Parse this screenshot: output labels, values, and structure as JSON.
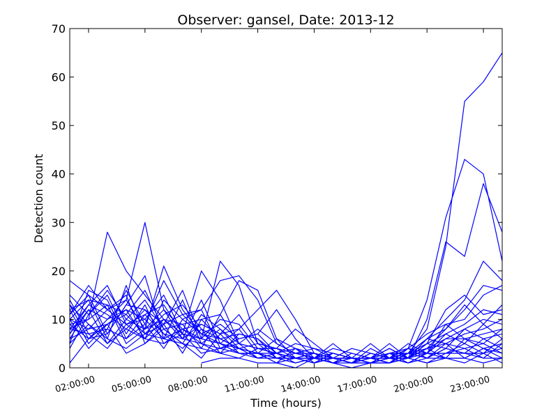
{
  "chart_data": {
    "type": "line",
    "title": "Observer: gansel, Date: 2013-12",
    "xlabel": "Time (hours)",
    "ylabel": "Detection count",
    "ylim": [
      0,
      70
    ],
    "xlim": [
      1,
      24
    ],
    "yticks": [
      "0",
      "10",
      "20",
      "30",
      "40",
      "50",
      "60",
      "70"
    ],
    "xticks": [
      {
        "x": 2,
        "label": "02:00:00"
      },
      {
        "x": 5,
        "label": "05:00:00"
      },
      {
        "x": 8,
        "label": "08:00:00"
      },
      {
        "x": 11,
        "label": "11:00:00"
      },
      {
        "x": 14,
        "label": "14:00:00"
      },
      {
        "x": 17,
        "label": "17:00:00"
      },
      {
        "x": 20,
        "label": "20:00:00"
      },
      {
        "x": 23,
        "label": "23:00:00"
      }
    ],
    "grid": false,
    "legend": false,
    "line_color": "#0000ff",
    "x": [
      1,
      2,
      3,
      4,
      5,
      6,
      7,
      8,
      9,
      10,
      11,
      12,
      13,
      14,
      15,
      16,
      17,
      18,
      19,
      20,
      21,
      22,
      23,
      24
    ],
    "series": [
      {
        "values": [
          18,
          15,
          12,
          14,
          8,
          10,
          6,
          5,
          3,
          4,
          2,
          3,
          2,
          1,
          2,
          1,
          2,
          1,
          3,
          8,
          25,
          55,
          59,
          65
        ]
      },
      {
        "values": [
          12,
          14,
          13,
          11,
          7,
          6,
          8,
          5,
          4,
          3,
          3,
          2,
          1,
          2,
          1,
          1,
          1,
          2,
          2,
          10,
          26,
          23,
          38,
          28
        ]
      },
      {
        "values": [
          10,
          8,
          9,
          12,
          10,
          6,
          5,
          4,
          3,
          2,
          4,
          3,
          2,
          2,
          3,
          2,
          2,
          3,
          4,
          14,
          31,
          43,
          40,
          22
        ]
      },
      {
        "values": [
          8,
          10,
          28,
          20,
          15,
          10,
          7,
          6,
          5,
          4,
          3,
          2,
          2,
          1,
          2,
          1,
          3,
          2,
          3,
          6,
          10,
          14,
          22,
          18
        ]
      },
      {
        "values": [
          6,
          12,
          10,
          14,
          30,
          12,
          8,
          6,
          5,
          3,
          3,
          3,
          2,
          2,
          1,
          2,
          2,
          1,
          3,
          5,
          12,
          15,
          11,
          12
        ]
      },
      {
        "values": [
          15,
          11,
          16,
          10,
          8,
          21,
          12,
          7,
          6,
          4,
          3,
          2,
          2,
          3,
          2,
          1,
          3,
          2,
          2,
          4,
          8,
          12,
          17,
          16
        ]
      },
      {
        "values": [
          11,
          17,
          12,
          9,
          11,
          13,
          7,
          20,
          14,
          5,
          4,
          3,
          2,
          2,
          1,
          2,
          1,
          1,
          4,
          7,
          9,
          10,
          15,
          17
        ]
      },
      {
        "values": [
          9,
          6,
          7,
          13,
          12,
          9,
          16,
          6,
          22,
          17,
          5,
          4,
          3,
          2,
          2,
          1,
          2,
          3,
          3,
          6,
          8,
          13,
          9,
          13
        ]
      },
      {
        "values": [
          7,
          13,
          11,
          8,
          6,
          14,
          10,
          12,
          18,
          19,
          14,
          5,
          3,
          2,
          2,
          2,
          1,
          2,
          2,
          5,
          7,
          9,
          12,
          11
        ]
      },
      {
        "values": [
          13,
          9,
          5,
          10,
          14,
          8,
          9,
          10,
          11,
          18,
          16,
          6,
          4,
          3,
          2,
          2,
          2,
          2,
          3,
          4,
          6,
          8,
          10,
          9
        ]
      },
      {
        "values": [
          5,
          16,
          14,
          6,
          11,
          7,
          6,
          14,
          5,
          8,
          12,
          16,
          10,
          3,
          2,
          2,
          1,
          3,
          2,
          4,
          5,
          7,
          8,
          10
        ]
      },
      {
        "values": [
          14,
          7,
          8,
          16,
          9,
          18,
          11,
          7,
          9,
          6,
          7,
          12,
          6,
          2,
          3,
          2,
          2,
          1,
          3,
          3,
          6,
          6,
          7,
          8
        ]
      },
      {
        "values": [
          4,
          11,
          15,
          7,
          13,
          5,
          8,
          9,
          7,
          11,
          5,
          4,
          8,
          5,
          2,
          1,
          2,
          2,
          2,
          5,
          4,
          8,
          6,
          7
        ]
      },
      {
        "values": [
          10,
          14,
          6,
          17,
          7,
          11,
          13,
          8,
          6,
          7,
          6,
          3,
          5,
          4,
          3,
          2,
          5,
          2,
          4,
          3,
          7,
          5,
          9,
          6
        ]
      },
      {
        "values": [
          12,
          5,
          9,
          11,
          16,
          8,
          5,
          11,
          8,
          5,
          8,
          5,
          3,
          2,
          4,
          3,
          2,
          4,
          2,
          6,
          5,
          4,
          5,
          8
        ]
      },
      {
        "values": [
          8,
          13,
          17,
          9,
          10,
          15,
          7,
          6,
          10,
          9,
          4,
          4,
          2,
          3,
          2,
          2,
          2,
          2,
          5,
          3,
          9,
          6,
          4,
          5
        ]
      },
      {
        "values": [
          6,
          8,
          12,
          15,
          5,
          9,
          11,
          12,
          4,
          6,
          7,
          3,
          4,
          2,
          5,
          2,
          1,
          3,
          3,
          2,
          4,
          3,
          6,
          4
        ]
      },
      {
        "values": [
          11,
          15,
          7,
          13,
          19,
          6,
          14,
          5,
          8,
          4,
          5,
          2,
          3,
          3,
          2,
          4,
          3,
          2,
          1,
          3,
          3,
          5,
          3,
          6
        ]
      },
      {
        "values": [
          9,
          10,
          13,
          5,
          8,
          12,
          6,
          9,
          7,
          8,
          3,
          6,
          2,
          1,
          3,
          2,
          2,
          4,
          2,
          4,
          2,
          6,
          5,
          3
        ]
      },
      {
        "values": [
          13,
          6,
          10,
          12,
          6,
          10,
          9,
          4,
          11,
          5,
          4,
          4,
          3,
          4,
          2,
          1,
          4,
          2,
          3,
          2,
          5,
          2,
          4,
          2
        ]
      },
      {
        "values": [
          7,
          12,
          5,
          8,
          12,
          7,
          4,
          8,
          3,
          7,
          6,
          2,
          2,
          2,
          1,
          3,
          2,
          5,
          2,
          3,
          3,
          4,
          2,
          5
        ]
      },
      {
        "values": [
          10,
          4,
          8,
          6,
          9,
          4,
          10,
          7,
          5,
          3,
          2,
          3,
          1,
          2,
          2,
          1,
          3,
          2,
          4,
          2,
          4,
          3,
          3,
          4
        ]
      },
      {
        "values": [
          5,
          9,
          6,
          4,
          7,
          9,
          3,
          10,
          6,
          4,
          3,
          1,
          4,
          1,
          3,
          2,
          1,
          3,
          1,
          3,
          2,
          2,
          4,
          3
        ]
      },
      {
        "values": [
          8,
          7,
          4,
          9,
          6,
          5,
          7,
          3,
          4,
          5,
          2,
          2,
          2,
          3,
          1,
          2,
          2,
          1,
          2,
          1,
          3,
          3,
          2,
          2
        ]
      },
      {
        "values": [
          null,
          null,
          null,
          null,
          null,
          null,
          null,
          1,
          2,
          2,
          1,
          1,
          2,
          1,
          2,
          1,
          1,
          2,
          1,
          2,
          2,
          1,
          3,
          1
        ]
      },
      {
        "values": [
          1,
          6,
          9,
          3,
          5,
          8,
          5,
          2,
          7,
          3,
          3,
          1,
          0,
          2,
          1,
          0,
          1,
          1,
          2,
          1,
          2,
          2,
          1,
          2
        ]
      }
    ]
  }
}
